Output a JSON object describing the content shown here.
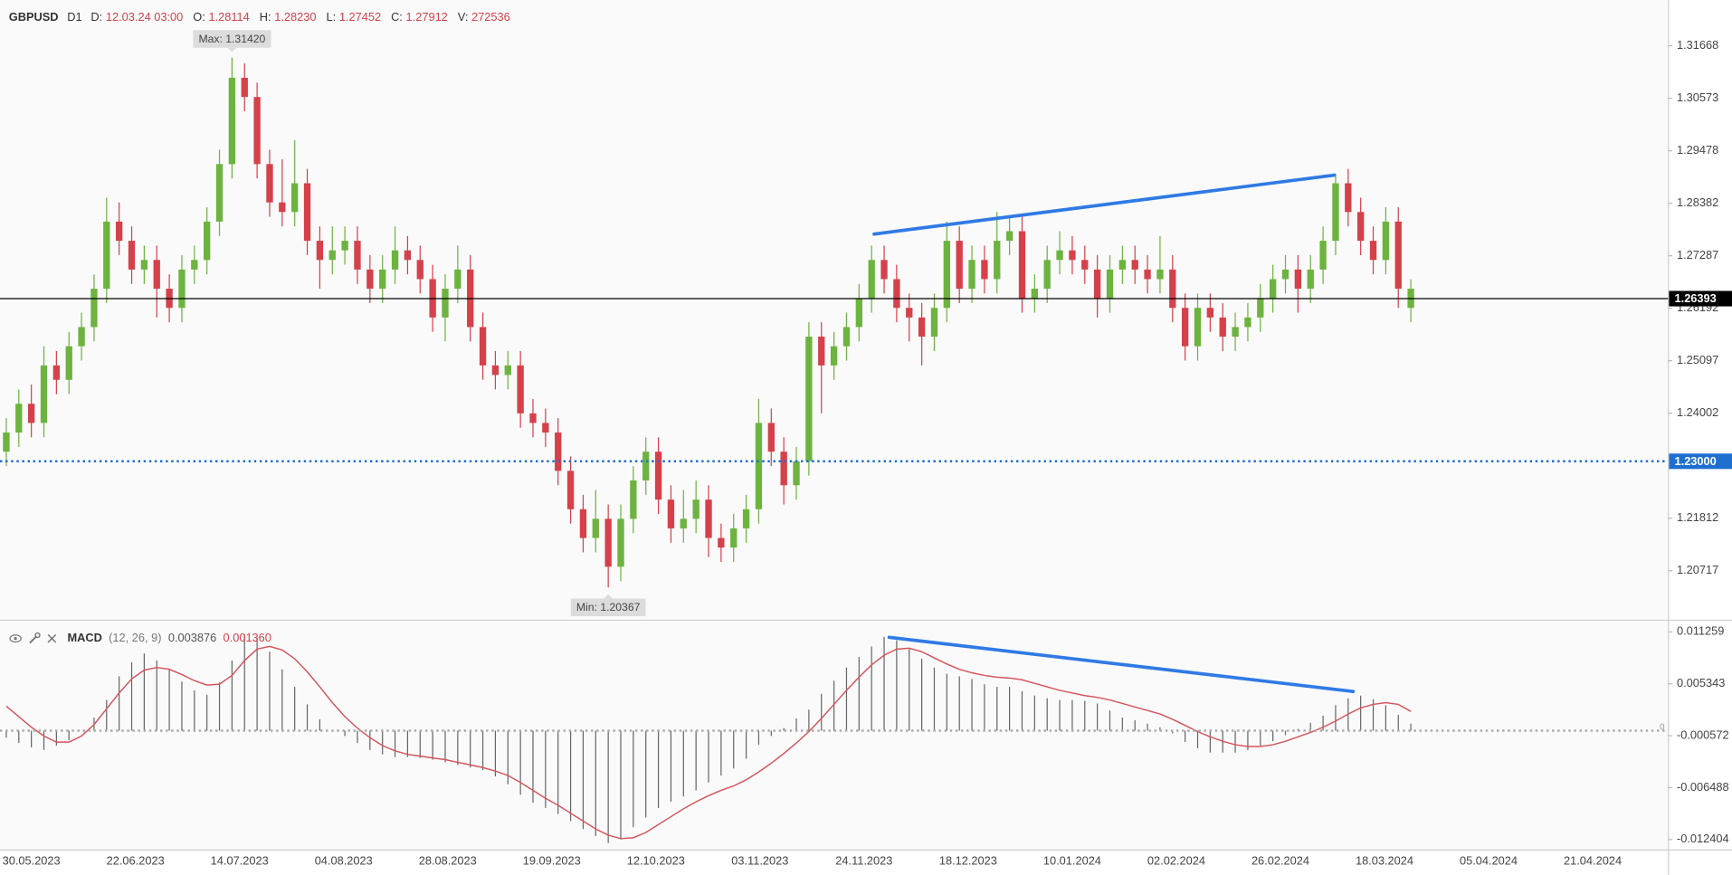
{
  "chart_data": [
    {
      "type": "candlestick",
      "header": {
        "symbol": "GBPUSD",
        "timeframe": "D1",
        "fields": [
          {
            "label": "D:",
            "value": "12.03.24 03:00"
          },
          {
            "label": "O:",
            "value": "1.28114"
          },
          {
            "label": "H:",
            "value": "1.28230"
          },
          {
            "label": "L:",
            "value": "1.27452"
          },
          {
            "label": "C:",
            "value": "1.27912"
          },
          {
            "label": "V:",
            "value": "272536"
          }
        ]
      },
      "up_color": "#6db33f",
      "down_color": "#d5414a",
      "open": [
        1.232,
        1.236,
        1.242,
        1.238,
        1.25,
        1.247,
        1.254,
        1.258,
        1.266,
        1.28,
        1.276,
        1.27,
        1.272,
        1.266,
        1.262,
        1.27,
        1.272,
        1.28,
        1.292,
        1.31,
        1.306,
        1.292,
        1.284,
        1.282,
        1.288,
        1.276,
        1.272,
        1.274,
        1.276,
        1.27,
        1.266,
        1.27,
        1.274,
        1.272,
        1.268,
        1.26,
        1.266,
        1.27,
        1.258,
        1.25,
        1.248,
        1.25,
        1.24,
        1.238,
        1.236,
        1.228,
        1.22,
        1.214,
        1.218,
        1.208,
        1.218,
        1.226,
        1.232,
        1.222,
        1.216,
        1.218,
        1.222,
        1.214,
        1.212,
        1.216,
        1.22,
        1.238,
        1.232,
        1.225,
        1.23,
        1.256,
        1.25,
        1.254,
        1.258,
        1.264,
        1.272,
        1.268,
        1.262,
        1.26,
        1.256,
        1.262,
        1.276,
        1.266,
        1.272,
        1.268,
        1.276,
        1.278,
        1.264,
        1.266,
        1.272,
        1.274,
        1.272,
        1.27,
        1.264,
        1.27,
        1.272,
        1.27,
        1.268,
        1.27,
        1.262,
        1.254,
        1.262,
        1.26,
        1.256,
        1.258,
        1.26,
        1.264,
        1.268,
        1.27,
        1.266,
        1.27,
        1.276,
        1.288,
        1.282,
        1.276,
        1.272,
        1.28,
        1.262
      ],
      "high": [
        1.239,
        1.245,
        1.246,
        1.254,
        1.253,
        1.257,
        1.261,
        1.269,
        1.285,
        1.284,
        1.279,
        1.275,
        1.275,
        1.269,
        1.273,
        1.275,
        1.283,
        1.295,
        1.3142,
        1.313,
        1.309,
        1.295,
        1.293,
        1.297,
        1.291,
        1.279,
        1.279,
        1.279,
        1.279,
        1.273,
        1.273,
        1.279,
        1.277,
        1.275,
        1.271,
        1.269,
        1.275,
        1.273,
        1.261,
        1.253,
        1.253,
        1.253,
        1.243,
        1.241,
        1.239,
        1.231,
        1.223,
        1.224,
        1.221,
        1.221,
        1.229,
        1.235,
        1.235,
        1.225,
        1.224,
        1.226,
        1.225,
        1.217,
        1.219,
        1.223,
        1.243,
        1.241,
        1.235,
        1.233,
        1.259,
        1.259,
        1.257,
        1.261,
        1.267,
        1.275,
        1.275,
        1.271,
        1.265,
        1.263,
        1.265,
        1.28,
        1.279,
        1.275,
        1.275,
        1.282,
        1.281,
        1.281,
        1.269,
        1.275,
        1.278,
        1.277,
        1.275,
        1.273,
        1.273,
        1.275,
        1.275,
        1.273,
        1.277,
        1.273,
        1.265,
        1.265,
        1.265,
        1.263,
        1.261,
        1.263,
        1.267,
        1.271,
        1.273,
        1.273,
        1.273,
        1.279,
        1.29,
        1.291,
        1.285,
        1.279,
        1.283,
        1.283,
        1.268
      ],
      "low": [
        1.229,
        1.233,
        1.235,
        1.235,
        1.244,
        1.244,
        1.251,
        1.255,
        1.263,
        1.273,
        1.267,
        1.267,
        1.26,
        1.259,
        1.259,
        1.267,
        1.269,
        1.277,
        1.289,
        1.303,
        1.289,
        1.281,
        1.279,
        1.279,
        1.273,
        1.266,
        1.269,
        1.271,
        1.267,
        1.263,
        1.263,
        1.267,
        1.269,
        1.265,
        1.257,
        1.255,
        1.263,
        1.255,
        1.247,
        1.245,
        1.245,
        1.237,
        1.235,
        1.233,
        1.225,
        1.217,
        1.211,
        1.211,
        1.20367,
        1.205,
        1.215,
        1.223,
        1.219,
        1.213,
        1.213,
        1.215,
        1.21,
        1.209,
        1.209,
        1.213,
        1.217,
        1.229,
        1.221,
        1.222,
        1.227,
        1.24,
        1.247,
        1.251,
        1.255,
        1.261,
        1.265,
        1.259,
        1.255,
        1.25,
        1.253,
        1.259,
        1.263,
        1.263,
        1.265,
        1.265,
        1.273,
        1.261,
        1.261,
        1.263,
        1.269,
        1.269,
        1.267,
        1.26,
        1.261,
        1.267,
        1.267,
        1.265,
        1.265,
        1.259,
        1.251,
        1.251,
        1.257,
        1.253,
        1.253,
        1.255,
        1.257,
        1.261,
        1.265,
        1.261,
        1.263,
        1.267,
        1.273,
        1.279,
        1.273,
        1.269,
        1.269,
        1.262,
        1.259
      ],
      "close": [
        1.236,
        1.242,
        1.238,
        1.25,
        1.247,
        1.254,
        1.258,
        1.266,
        1.28,
        1.276,
        1.27,
        1.272,
        1.266,
        1.262,
        1.27,
        1.272,
        1.28,
        1.292,
        1.31,
        1.306,
        1.292,
        1.284,
        1.282,
        1.288,
        1.276,
        1.272,
        1.274,
        1.276,
        1.27,
        1.266,
        1.27,
        1.274,
        1.272,
        1.268,
        1.26,
        1.266,
        1.27,
        1.258,
        1.25,
        1.248,
        1.25,
        1.24,
        1.238,
        1.236,
        1.228,
        1.22,
        1.214,
        1.218,
        1.208,
        1.218,
        1.226,
        1.232,
        1.222,
        1.216,
        1.218,
        1.222,
        1.214,
        1.212,
        1.216,
        1.22,
        1.238,
        1.232,
        1.225,
        1.23,
        1.256,
        1.25,
        1.254,
        1.258,
        1.264,
        1.272,
        1.268,
        1.262,
        1.26,
        1.256,
        1.262,
        1.276,
        1.266,
        1.272,
        1.268,
        1.276,
        1.278,
        1.264,
        1.266,
        1.272,
        1.274,
        1.272,
        1.27,
        1.264,
        1.27,
        1.272,
        1.27,
        1.268,
        1.27,
        1.262,
        1.254,
        1.262,
        1.26,
        1.256,
        1.258,
        1.26,
        1.264,
        1.268,
        1.27,
        1.266,
        1.27,
        1.276,
        1.288,
        1.282,
        1.276,
        1.272,
        1.28,
        1.266,
        1.266
      ],
      "xlim": [
        -0.5,
        132.5
      ],
      "ylim": [
        1.19717,
        1.32621
      ],
      "yticks": [
        1.31668,
        1.30573,
        1.29478,
        1.28382,
        1.27287,
        1.26192,
        1.25097,
        1.24002,
        1.21812,
        1.20717
      ],
      "xticks": [
        {
          "value": 2,
          "label": "30.05.2023"
        },
        {
          "value": 10.3,
          "label": "22.06.2023"
        },
        {
          "value": 18.6,
          "label": "14.07.2023"
        },
        {
          "value": 26.9,
          "label": "04.08.2023"
        },
        {
          "value": 35.2,
          "label": "28.08.2023"
        },
        {
          "value": 43.5,
          "label": "19.09.2023"
        },
        {
          "value": 51.8,
          "label": "12.10.2023"
        },
        {
          "value": 60.1,
          "label": "03.11.2023"
        },
        {
          "value": 68.4,
          "label": "24.11.2023"
        },
        {
          "value": 76.7,
          "label": "18.12.2023"
        },
        {
          "value": 85,
          "label": "10.01.2024"
        },
        {
          "value": 93.3,
          "label": "02.02.2024"
        },
        {
          "value": 101.6,
          "label": "26.02.2024"
        },
        {
          "value": 109.9,
          "label": "18.03.2024"
        },
        {
          "value": 118.2,
          "label": "05.04.2024"
        },
        {
          "value": 126.5,
          "label": "21.04.2024"
        }
      ],
      "hlines": [
        {
          "value": 1.23,
          "label": "1.23000",
          "color": "#1f6fd1",
          "style": "dotted",
          "boxed": true
        },
        {
          "value": 1.26393,
          "color": "#000000",
          "style": "solid",
          "boxed": true
        }
      ],
      "annotations": [
        {
          "text": "Max: 1.31420",
          "x": 18,
          "y": 1.3142,
          "side": "above"
        },
        {
          "text": "Min: 1.20367",
          "x": 48,
          "y": 1.20367,
          "side": "below"
        }
      ],
      "trendlines": [
        {
          "x": [
            69.2,
            105.9
          ],
          "y": [
            1.2774,
            1.2897
          ],
          "color": "#2f7ae5"
        }
      ]
    },
    {
      "type": "macd",
      "header": {
        "title": "MACD",
        "params": "(12, 26, 9)",
        "readouts": [
          {
            "value": "0.003876",
            "color": "#555555"
          },
          {
            "value": "0.001360",
            "color": "#d5414a"
          }
        ]
      },
      "xlim": [
        -0.5,
        132.5
      ],
      "ylim": [
        -0.014292,
        0.012392
      ],
      "yticks": [
        0.011259,
        0.005343,
        -0.000572,
        -0.006488,
        -0.012404
      ],
      "series": [
        {
          "type": "bar",
          "color": "#666666",
          "values": [
            -0.0008,
            -0.0014,
            -0.0019,
            -0.0022,
            -0.0017,
            -0.0011,
            0.0,
            0.0015,
            0.0035,
            0.0062,
            0.0078,
            0.0088,
            0.008,
            0.007,
            0.0056,
            0.0046,
            0.0041,
            0.0055,
            0.008,
            0.011,
            0.0106,
            0.009,
            0.007,
            0.005,
            0.003,
            0.0013,
            -0.0001,
            -0.0006,
            -0.0014,
            -0.0022,
            -0.0027,
            -0.003,
            -0.003,
            -0.0031,
            -0.0033,
            -0.0036,
            -0.0039,
            -0.0042,
            -0.0045,
            -0.0052,
            -0.0061,
            -0.0073,
            -0.0082,
            -0.0088,
            -0.0095,
            -0.0103,
            -0.0112,
            -0.012,
            -0.0128,
            -0.0124,
            -0.011,
            -0.0099,
            -0.0088,
            -0.0081,
            -0.0075,
            -0.0068,
            -0.0059,
            -0.0051,
            -0.0043,
            -0.0032,
            -0.0016,
            -0.0006,
            0.0003,
            0.0014,
            0.0024,
            0.0042,
            0.0057,
            0.0072,
            0.0084,
            0.0096,
            0.0107,
            0.0103,
            0.0093,
            0.0082,
            0.0072,
            0.0065,
            0.0062,
            0.0059,
            0.0053,
            0.005,
            0.005,
            0.0045,
            0.004,
            0.0037,
            0.0035,
            0.0035,
            0.0034,
            0.0031,
            0.0023,
            0.0015,
            0.0012,
            0.0008,
            0.0004,
            -0.0003,
            -0.0013,
            -0.002,
            -0.0025,
            -0.0025,
            -0.0025,
            -0.0022,
            -0.0017,
            -0.0012,
            -0.0005,
            0.0002,
            0.0009,
            0.0017,
            0.0029,
            0.0037,
            0.004,
            0.0036,
            0.0029,
            0.0018,
            0.0008
          ]
        },
        {
          "type": "line",
          "color": "#d4555c",
          "values": [
            0.0028,
            0.0016,
            0.0004,
            -0.0006,
            -0.0013,
            -0.0013,
            -0.0006,
            0.0007,
            0.0025,
            0.0043,
            0.0059,
            0.0069,
            0.0072,
            0.007,
            0.0064,
            0.0057,
            0.0052,
            0.0053,
            0.0063,
            0.008,
            0.0093,
            0.0096,
            0.0092,
            0.0082,
            0.0067,
            0.005,
            0.0032,
            0.0016,
            0.0003,
            -0.0008,
            -0.0017,
            -0.0023,
            -0.0027,
            -0.0029,
            -0.0031,
            -0.0033,
            -0.0036,
            -0.0039,
            -0.0042,
            -0.0046,
            -0.0051,
            -0.0059,
            -0.0068,
            -0.0077,
            -0.0085,
            -0.0094,
            -0.0103,
            -0.0112,
            -0.0119,
            -0.0123,
            -0.0122,
            -0.0116,
            -0.0107,
            -0.0098,
            -0.0089,
            -0.0081,
            -0.0074,
            -0.0068,
            -0.0063,
            -0.0056,
            -0.0047,
            -0.0037,
            -0.0026,
            -0.0014,
            -0.0001,
            0.0014,
            0.003,
            0.0046,
            0.0061,
            0.0075,
            0.0086,
            0.0093,
            0.0094,
            0.009,
            0.0083,
            0.0076,
            0.007,
            0.0066,
            0.0063,
            0.0061,
            0.006,
            0.0058,
            0.0054,
            0.005,
            0.0046,
            0.0043,
            0.004,
            0.0038,
            0.0035,
            0.0031,
            0.0027,
            0.0023,
            0.0019,
            0.0013,
            0.0006,
            -0.0001,
            -0.0007,
            -0.0012,
            -0.0016,
            -0.0018,
            -0.0018,
            -0.0016,
            -0.0012,
            -0.0007,
            -0.0002,
            0.0004,
            0.0011,
            0.0019,
            0.0026,
            0.003,
            0.0032,
            0.003,
            0.0022
          ]
        }
      ],
      "hlines": [
        {
          "value": 0,
          "color": "#aaaaaa",
          "style": "dotted",
          "boxed": false
        }
      ],
      "trendlines": [
        {
          "x": [
            70.4,
            107.4
          ],
          "y": [
            0.01064,
            0.00447
          ],
          "color": "#2f7ae5"
        }
      ]
    }
  ]
}
